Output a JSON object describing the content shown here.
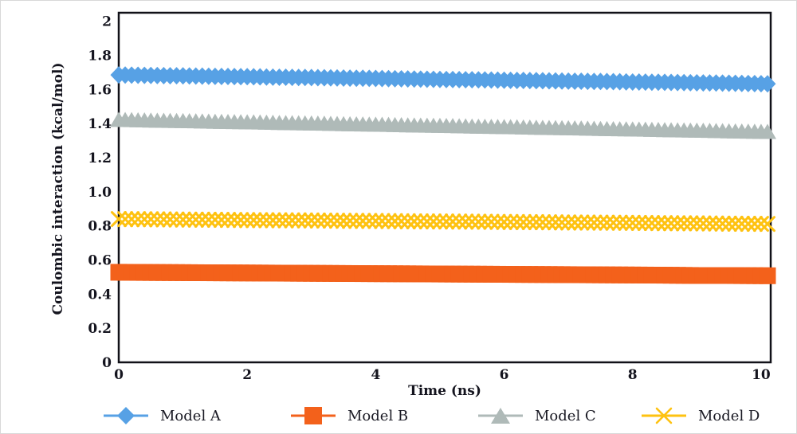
{
  "chart_data": {
    "type": "scatter",
    "title": "",
    "xlabel": "Time (ns)",
    "ylabel": "Coulombic interaction (kcal/mol)",
    "grid": false,
    "legend_position": "bottom",
    "xlim": [
      0,
      10.15
    ],
    "ylim": [
      0,
      2.05
    ],
    "x": [
      0,
      0.5,
      1,
      1.5,
      2,
      2.5,
      3,
      3.5,
      4,
      4.5,
      5,
      5.5,
      6,
      6.5,
      7,
      7.5,
      8,
      8.5,
      9,
      9.5,
      10
    ],
    "marker_step": 0.1,
    "xticks": [
      0,
      2,
      4,
      6,
      8,
      10
    ],
    "xtick_labels": [
      "0",
      "2",
      "4",
      "6",
      "8",
      "10"
    ],
    "yticks": [
      0,
      0.2,
      0.4,
      0.6,
      0.8,
      1.0,
      1.2,
      1.4,
      1.6,
      1.8,
      2
    ],
    "ytick_labels": [
      "0",
      "0.2",
      "0.4",
      "0.6",
      "0.8",
      "1.0",
      "1.2",
      "1.4",
      "1.6",
      "1.8",
      "2"
    ],
    "axis_color": "#111118",
    "series": [
      {
        "name": "Model A",
        "marker": "diamond",
        "color": "#57A1E5",
        "values": [
          1.685,
          1.682,
          1.68,
          1.677,
          1.675,
          1.672,
          1.67,
          1.667,
          1.665,
          1.662,
          1.659,
          1.657,
          1.654,
          1.652,
          1.649,
          1.647,
          1.644,
          1.642,
          1.639,
          1.637,
          1.634
        ]
      },
      {
        "name": "Model B",
        "marker": "square",
        "color": "#F3611B",
        "values": [
          0.528,
          0.527,
          0.526,
          0.525,
          0.524,
          0.523,
          0.522,
          0.521,
          0.52,
          0.519,
          0.518,
          0.517,
          0.516,
          0.515,
          0.514,
          0.513,
          0.512,
          0.511,
          0.509,
          0.509,
          0.508
        ]
      },
      {
        "name": "Model C",
        "marker": "triangle",
        "color": "#AFBAB8",
        "values": [
          1.425,
          1.421,
          1.418,
          1.414,
          1.411,
          1.407,
          1.404,
          1.4,
          1.397,
          1.393,
          1.39,
          1.386,
          1.383,
          1.379,
          1.376,
          1.372,
          1.369,
          1.365,
          1.362,
          1.358,
          1.355
        ]
      },
      {
        "name": "Model D",
        "marker": "x",
        "color": "#FEC211",
        "values": [
          0.84,
          0.839,
          0.837,
          0.836,
          0.834,
          0.833,
          0.832,
          0.83,
          0.829,
          0.827,
          0.826,
          0.825,
          0.823,
          0.822,
          0.82,
          0.819,
          0.818,
          0.816,
          0.815,
          0.813,
          0.812
        ]
      }
    ]
  }
}
